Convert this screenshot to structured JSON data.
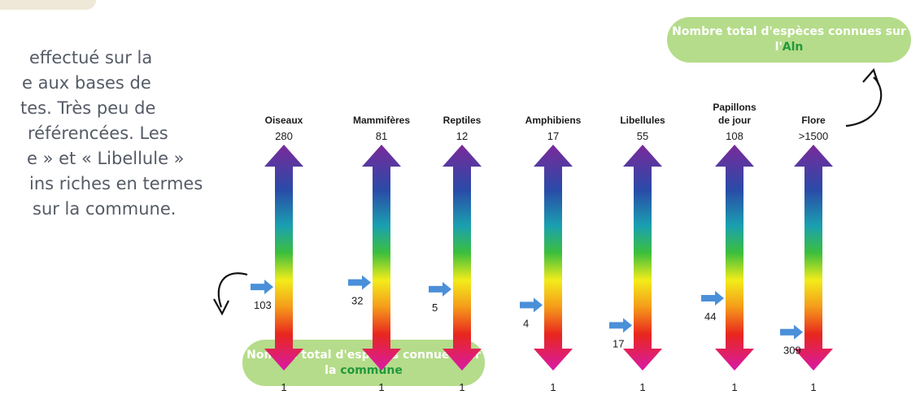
{
  "paragraph": {
    "line1": "effectué sur la",
    "line2": "e aux bases de",
    "line3": "tes. Très peu de",
    "line4": "référencées. Les",
    "line5": "e » et « Libellule »",
    "line6": "ins riches en termes",
    "line7": "sur la commune."
  },
  "bubble_top": {
    "text": "Nombre total d'espèces connues sur l'",
    "highlight": "Aln"
  },
  "bubble_bottom": {
    "text": "Nombre total d'espèces connues sur la",
    "highlight": "commune"
  },
  "colors": {
    "bubble": "#b5dc8a",
    "highlight": "#1f9a3c",
    "arrow_marker": "#4a90d9"
  },
  "groups": [
    {
      "label": [
        "Oiseaux"
      ],
      "top": "280",
      "bottom": "1",
      "commune": "103",
      "commune_level": 0.37
    },
    {
      "label": [
        "Mammifères"
      ],
      "top": "81",
      "bottom": "1",
      "commune": "32",
      "commune_level": 0.39
    },
    {
      "label": [
        "Reptiles"
      ],
      "top": "12",
      "bottom": "1",
      "commune": "5",
      "commune_level": 0.36
    },
    {
      "label": [
        "Amphibiens"
      ],
      "top": "17",
      "bottom": "1",
      "commune": "4",
      "commune_level": 0.29
    },
    {
      "label": [
        "Libellules"
      ],
      "top": "55",
      "bottom": "1",
      "commune": "17",
      "commune_level": 0.2
    },
    {
      "label": [
        "Papillons",
        "de jour"
      ],
      "top": "108",
      "bottom": "1",
      "commune": "44",
      "commune_level": 0.32
    },
    {
      "label": [
        "Flore"
      ],
      "top": ">1500",
      "bottom": "1",
      "commune": "309",
      "commune_level": 0.17
    }
  ]
}
